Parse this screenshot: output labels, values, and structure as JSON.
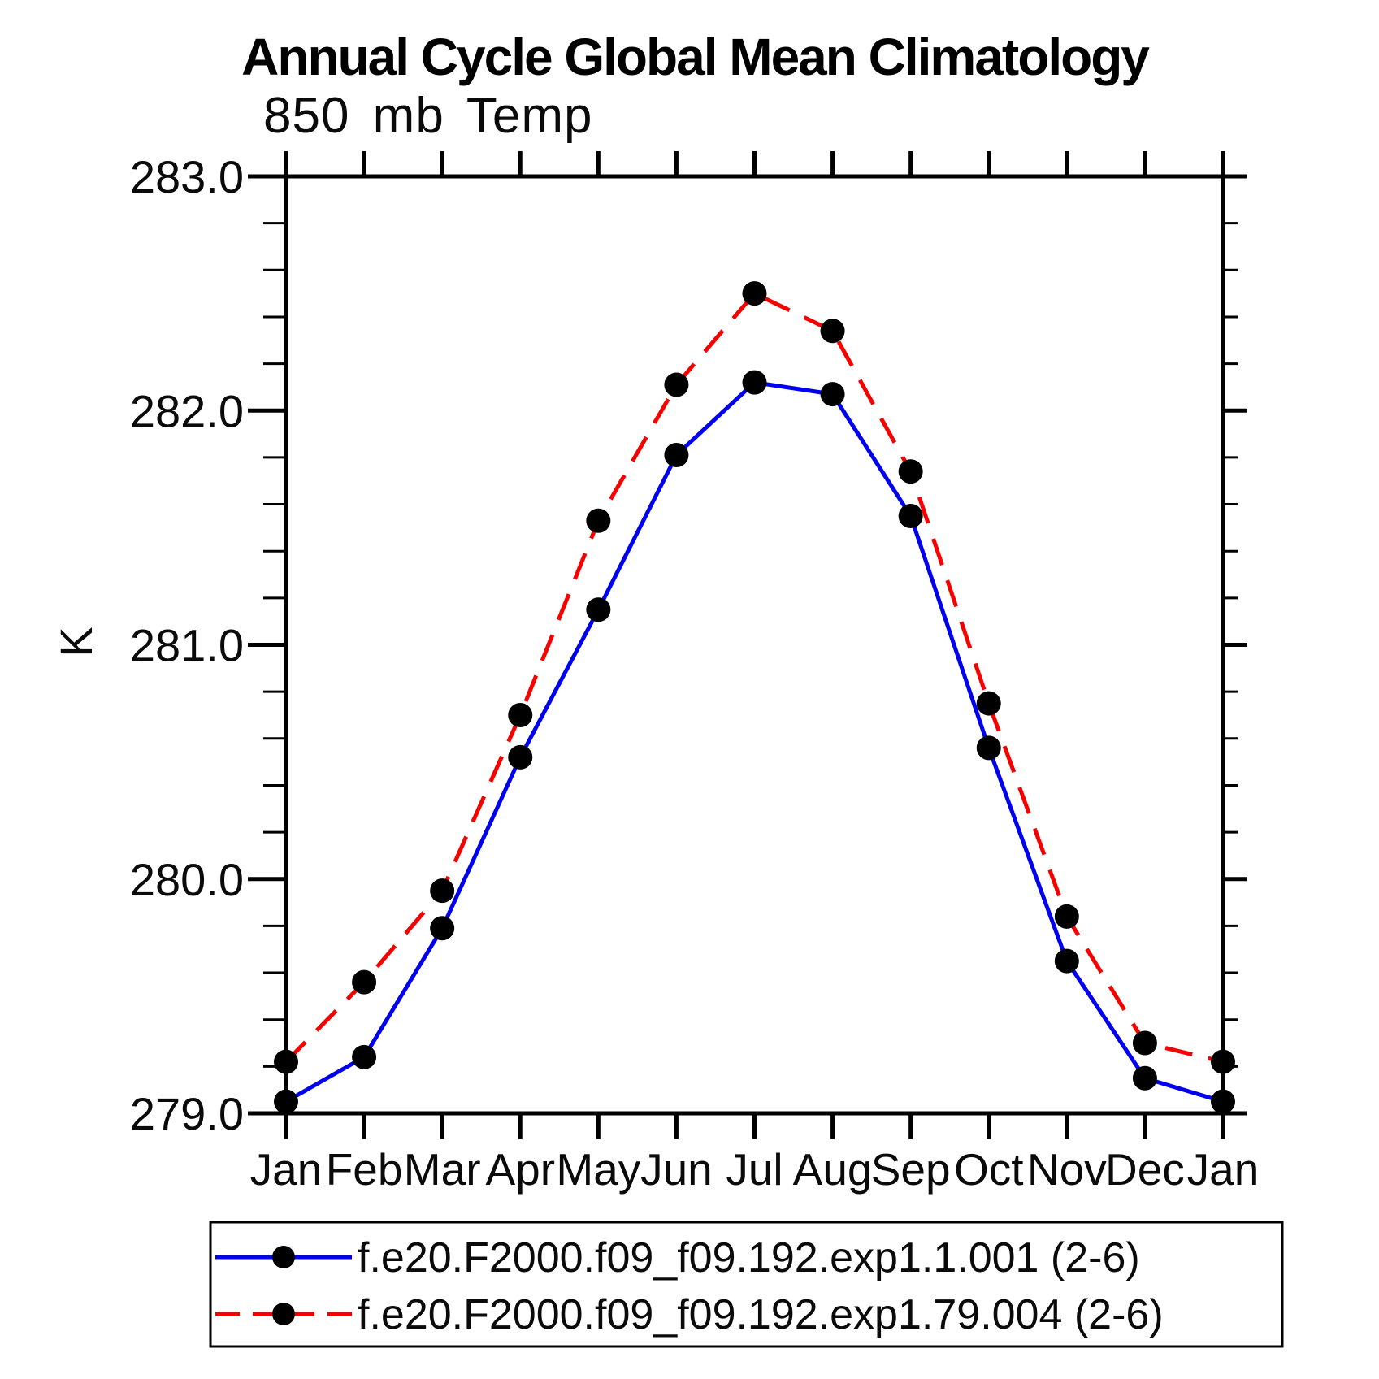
{
  "title": "Annual Cycle Global Mean Climatology",
  "subtitle": "850 mb Temp",
  "y_axis": {
    "title": "K",
    "tick_values": [
      283.0,
      282.0,
      281.0,
      280.0,
      279.0
    ],
    "tick_labels": [
      "283.0",
      "282.0",
      "281.0",
      "280.0",
      "279.0"
    ],
    "minor_step": 0.2
  },
  "x_axis": {
    "labels": [
      "Jan",
      "Feb",
      "Mar",
      "Apr",
      "May",
      "Jun",
      "Jul",
      "Aug",
      "Sep",
      "Oct",
      "Nov",
      "Dec",
      "Jan"
    ]
  },
  "chart_data": {
    "type": "line",
    "title": "Annual Cycle Global Mean Climatology",
    "subtitle": "850 mb Temp",
    "xlabel": "",
    "ylabel": "K",
    "ylim": [
      279.0,
      283.0
    ],
    "grid": false,
    "legend_position": "bottom",
    "categories": [
      "Jan",
      "Feb",
      "Mar",
      "Apr",
      "May",
      "Jun",
      "Jul",
      "Aug",
      "Sep",
      "Oct",
      "Nov",
      "Dec",
      "Jan"
    ],
    "series": [
      {
        "name": "f.e20.F2000.f09_f09.192.exp1.1.001 (2-6)",
        "color": "#0000ee",
        "line_style": "solid",
        "marker": "circle",
        "marker_color": "#000000",
        "values": [
          279.05,
          279.24,
          279.79,
          280.52,
          281.15,
          281.81,
          282.12,
          282.07,
          281.55,
          280.56,
          279.65,
          279.15,
          279.05
        ]
      },
      {
        "name": "f.e20.F2000.f09_f09.192.exp1.79.004 (2-6)",
        "color": "#f60000",
        "line_style": "dashed",
        "marker": "circle",
        "marker_color": "#000000",
        "values": [
          279.22,
          279.56,
          279.95,
          280.7,
          281.53,
          282.11,
          282.5,
          282.34,
          281.74,
          280.75,
          279.84,
          279.3,
          279.22
        ]
      }
    ]
  }
}
